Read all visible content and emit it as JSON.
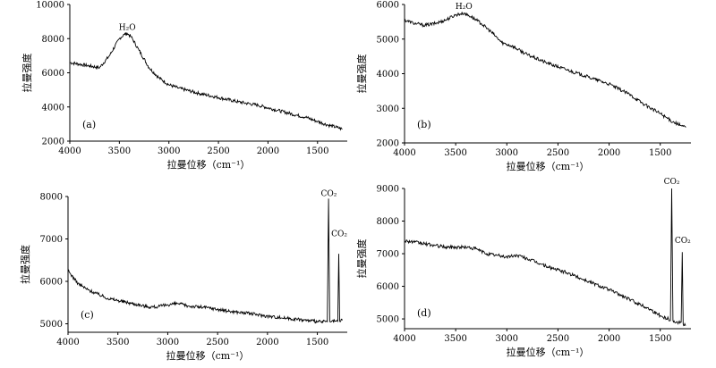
{
  "chart_data": [
    {
      "type": "line",
      "panel_label": "(a)",
      "xlabel": "拉曼位移（cm⁻¹）",
      "ylabel": "拉曼强度",
      "xlim": [
        4000,
        1200
      ],
      "ylim": [
        2000,
        10000
      ],
      "x_ticks": [
        "4000",
        "3500",
        "3000",
        "2500",
        "2000",
        "1500"
      ],
      "y_ticks": [
        "2000",
        "4000",
        "6000",
        "8000",
        "10000"
      ],
      "annotations": [
        {
          "text": "H₂O",
          "x": 3420,
          "y": 8350
        }
      ],
      "series": [
        {
          "x": [
            4000,
            3900,
            3800,
            3700,
            3600,
            3500,
            3450,
            3420,
            3380,
            3300,
            3200,
            3100,
            3000,
            2900,
            2700,
            2500,
            2300,
            2100,
            1900,
            1700,
            1620,
            1500,
            1400,
            1300,
            1250
          ],
          "y": [
            6600,
            6500,
            6400,
            6300,
            7000,
            8000,
            8250,
            8300,
            8100,
            7300,
            6300,
            5700,
            5300,
            5100,
            4800,
            4550,
            4300,
            4100,
            3800,
            3500,
            3400,
            3150,
            2950,
            2800,
            2700
          ]
        }
      ]
    },
    {
      "type": "line",
      "panel_label": "(b)",
      "xlabel": "拉曼位移（cm⁻¹）",
      "ylabel": "拉曼强度",
      "xlim": [
        4000,
        1200
      ],
      "ylim": [
        2000,
        6000
      ],
      "x_ticks": [
        "4000",
        "3500",
        "3000",
        "2500",
        "2000",
        "1500"
      ],
      "y_ticks": [
        "2000",
        "3000",
        "4000",
        "5000",
        "6000"
      ],
      "annotations": [
        {
          "text": "H₂O",
          "x": 3420,
          "y": 5800
        }
      ],
      "series": [
        {
          "x": [
            4000,
            3900,
            3800,
            3700,
            3600,
            3500,
            3420,
            3350,
            3250,
            3150,
            3050,
            2950,
            2800,
            2600,
            2400,
            2200,
            2000,
            1800,
            1650,
            1500,
            1400,
            1300,
            1250
          ],
          "y": [
            5550,
            5450,
            5400,
            5450,
            5550,
            5700,
            5750,
            5650,
            5450,
            5200,
            4900,
            4800,
            4550,
            4300,
            4100,
            3900,
            3700,
            3400,
            3100,
            2850,
            2650,
            2500,
            2450
          ]
        }
      ]
    },
    {
      "type": "line",
      "panel_label": "(c)",
      "xlabel": "拉曼位移（cm⁻¹）",
      "ylabel": "拉曼强度",
      "xlim": [
        4000,
        1200
      ],
      "ylim": [
        4800,
        8000
      ],
      "x_ticks": [
        "4000",
        "3500",
        "3000",
        "2500",
        "2000",
        "1500"
      ],
      "y_ticks": [
        "5000",
        "6000",
        "7000",
        "8000"
      ],
      "annotations": [
        {
          "text": "CO₂",
          "x": 1385,
          "y": 7950
        },
        {
          "text": "CO₂",
          "x": 1280,
          "y": 7000
        }
      ],
      "series": [
        {
          "x": [
            4000,
            3900,
            3800,
            3700,
            3600,
            3500,
            3400,
            3300,
            3200,
            3100,
            3000,
            2900,
            2800,
            2600,
            2400,
            2200,
            2000,
            1800,
            1600,
            1500,
            1420,
            1400,
            1388,
            1376,
            1360,
            1320,
            1295,
            1285,
            1276,
            1265,
            1250
          ],
          "y": [
            6250,
            5950,
            5800,
            5700,
            5600,
            5550,
            5500,
            5450,
            5400,
            5400,
            5450,
            5480,
            5420,
            5380,
            5300,
            5250,
            5180,
            5130,
            5080,
            5050,
            5050,
            5050,
            7950,
            5050,
            5050,
            5060,
            5060,
            6650,
            5060,
            5070,
            5080
          ]
        }
      ]
    },
    {
      "type": "line",
      "panel_label": "(d)",
      "xlabel": "拉曼位移（cm⁻¹）",
      "ylabel": "拉曼强度",
      "xlim": [
        4000,
        1200
      ],
      "ylim": [
        4700,
        9000
      ],
      "x_ticks": [
        "4000",
        "3500",
        "3000",
        "2500",
        "2000",
        "1500"
      ],
      "y_ticks": [
        "5000",
        "6000",
        "7000",
        "8000",
        "9000"
      ],
      "annotations": [
        {
          "text": "CO₂",
          "x": 1388,
          "y": 9050
        },
        {
          "text": "CO₂",
          "x": 1280,
          "y": 7250
        }
      ],
      "series": [
        {
          "x": [
            4000,
            3900,
            3800,
            3700,
            3600,
            3500,
            3400,
            3300,
            3200,
            3100,
            3000,
            2900,
            2800,
            2600,
            2400,
            2200,
            2000,
            1800,
            1600,
            1500,
            1420,
            1400,
            1388,
            1376,
            1360,
            1320,
            1295,
            1285,
            1276,
            1265,
            1250
          ],
          "y": [
            7400,
            7350,
            7300,
            7250,
            7200,
            7200,
            7200,
            7150,
            7000,
            6950,
            6900,
            6950,
            6850,
            6600,
            6400,
            6150,
            5900,
            5600,
            5300,
            5100,
            5000,
            4950,
            9000,
            4950,
            4900,
            4900,
            4900,
            7050,
            4850,
            4800,
            4800
          ]
        }
      ]
    }
  ]
}
